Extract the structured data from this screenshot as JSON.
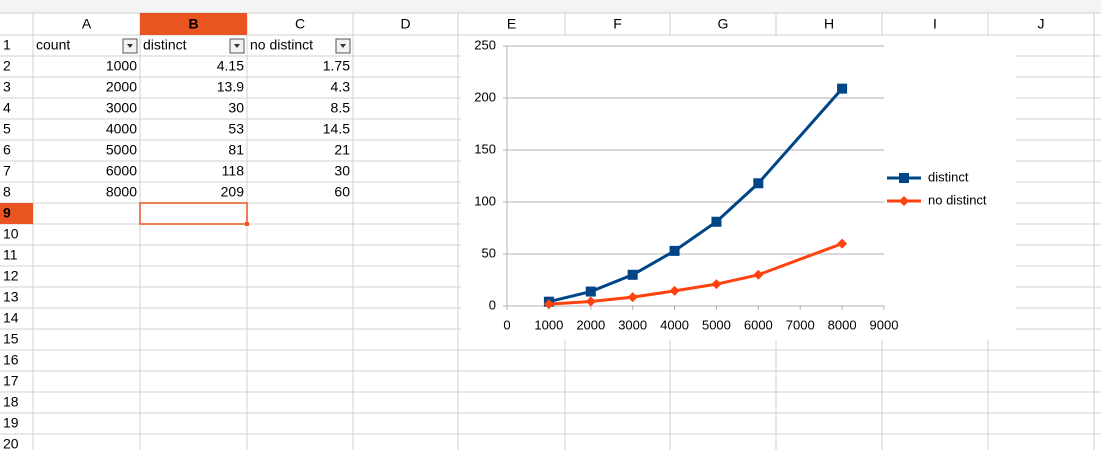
{
  "sheet": {
    "columns": [
      "A",
      "B",
      "C",
      "D",
      "E",
      "F",
      "G",
      "H",
      "I",
      "J"
    ],
    "row_numbers": [
      1,
      2,
      3,
      4,
      5,
      6,
      7,
      8,
      9,
      10,
      11,
      12,
      13,
      14,
      15,
      16,
      17,
      18,
      19,
      20
    ],
    "cells": [
      [
        "count",
        "distinct",
        "no distinct"
      ],
      [
        1000,
        4.15,
        1.75
      ],
      [
        2000,
        13.9,
        4.3
      ],
      [
        3000,
        30,
        8.5
      ],
      [
        4000,
        53,
        14.5
      ],
      [
        5000,
        81,
        21
      ],
      [
        6000,
        118,
        30
      ],
      [
        8000,
        209,
        60
      ]
    ]
  },
  "chart_data": {
    "type": "line",
    "x": [
      1000,
      2000,
      3000,
      4000,
      5000,
      6000,
      8000
    ],
    "series": [
      {
        "name": "distinct",
        "color": "#004586",
        "marker": "square",
        "values": [
          4.15,
          13.9,
          30,
          53,
          81,
          118,
          209
        ]
      },
      {
        "name": "no distinct",
        "color": "#ff420e",
        "marker": "diamond",
        "values": [
          1.75,
          4.3,
          8.5,
          14.5,
          21,
          30,
          60
        ]
      }
    ],
    "xlim": [
      0,
      9000
    ],
    "xticks": [
      0,
      1000,
      2000,
      3000,
      4000,
      5000,
      6000,
      7000,
      8000,
      9000
    ],
    "ylim": [
      0,
      250
    ],
    "yticks": [
      0,
      50,
      100,
      150,
      200,
      250
    ],
    "grid": true,
    "legend": "right"
  }
}
